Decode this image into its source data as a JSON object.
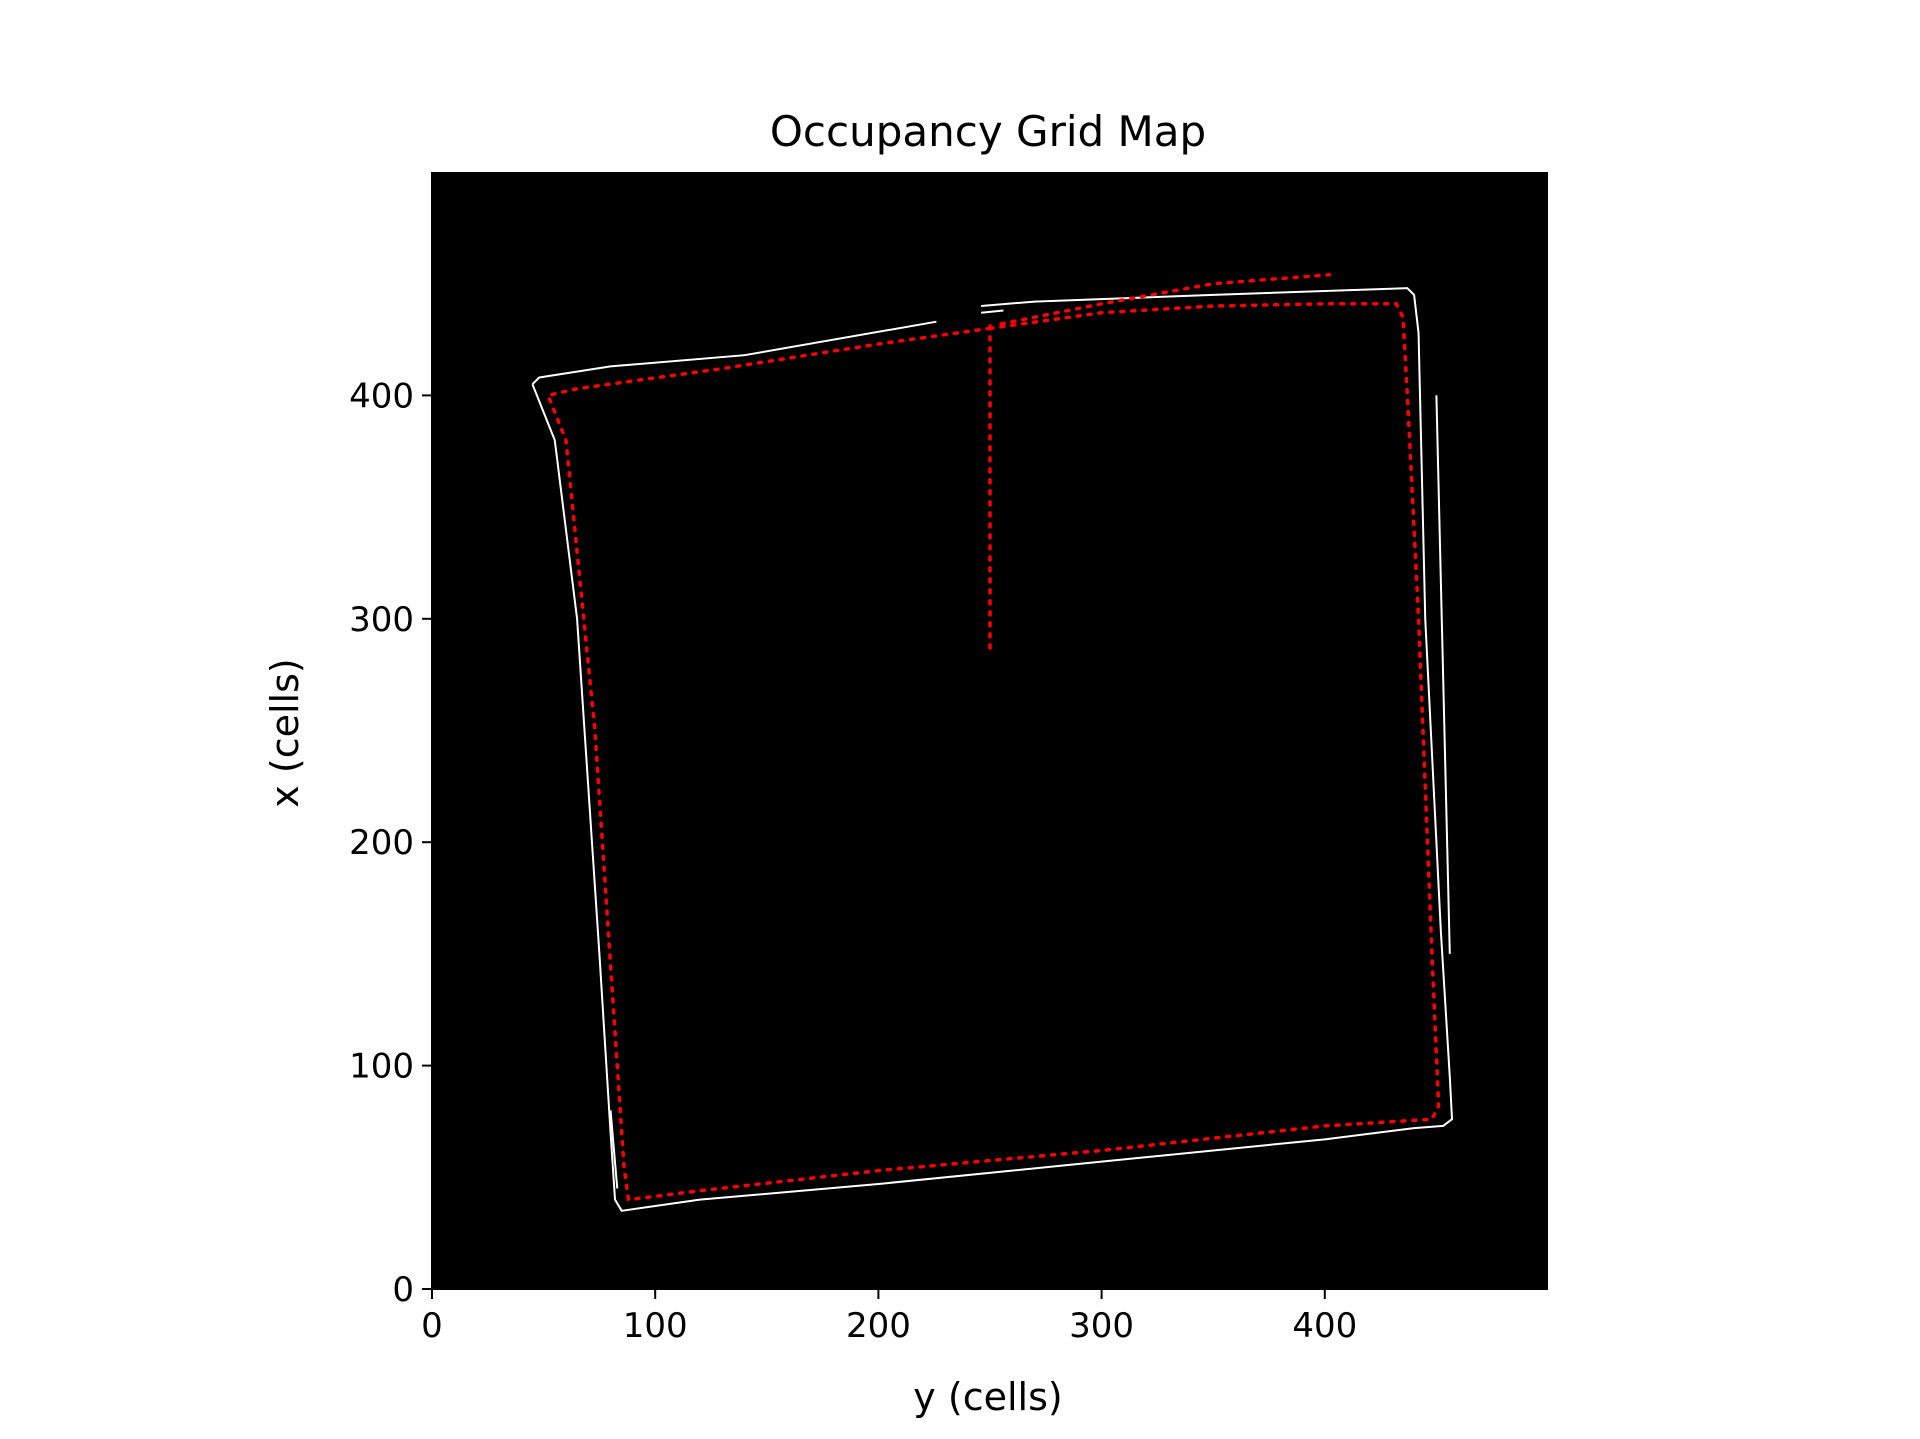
{
  "chart_data": {
    "type": "scatter",
    "title": "Occupancy Grid Map",
    "xlabel": "y (cells)",
    "ylabel": "x (cells)",
    "xlim": [
      0,
      500
    ],
    "ylim": [
      0,
      500
    ],
    "x_ticks": [
      0,
      100,
      200,
      300,
      400
    ],
    "y_ticks": [
      0,
      100,
      200,
      300,
      400
    ],
    "x_tick_labels": [
      "0",
      "100",
      "200",
      "300",
      "400"
    ],
    "y_tick_labels": [
      "0",
      "100",
      "200",
      "300",
      "400"
    ],
    "grid": false,
    "background_color": "#000000",
    "occupied_color": "#ffffff",
    "path_color": "#ff0000",
    "occupied_walls": [
      {
        "points": [
          [
            45,
            405
          ],
          [
            48,
            408
          ],
          [
            80,
            413
          ],
          [
            140,
            418
          ],
          [
            226,
            433
          ]
        ]
      },
      {
        "points": [
          [
            246,
            440
          ],
          [
            270,
            442
          ],
          [
            350,
            445
          ],
          [
            437,
            448
          ],
          [
            440,
            445
          ],
          [
            442,
            428
          ],
          [
            445,
            300
          ],
          [
            452,
            160
          ],
          [
            456,
            95
          ],
          [
            457,
            76
          ],
          [
            453,
            73
          ],
          [
            440,
            72
          ],
          [
            400,
            67
          ],
          [
            300,
            57
          ],
          [
            200,
            47
          ],
          [
            120,
            40
          ],
          [
            85,
            35
          ],
          [
            82,
            40
          ],
          [
            80,
            70
          ],
          [
            75,
            150
          ],
          [
            65,
            300
          ],
          [
            55,
            380
          ],
          [
            45,
            405
          ]
        ]
      },
      {
        "points": [
          [
            246,
            437
          ],
          [
            256,
            438
          ]
        ]
      },
      {
        "points": [
          [
            450,
            400
          ],
          [
            456,
            150
          ]
        ]
      },
      {
        "points": [
          [
            80,
            80
          ],
          [
            83,
            45
          ]
        ]
      }
    ],
    "robot_path": [
      {
        "points": [
          [
            250,
            287
          ],
          [
            250,
            432
          ]
        ]
      },
      {
        "points": [
          [
            250,
            430
          ],
          [
            300,
            437
          ],
          [
            350,
            440
          ],
          [
            400,
            441
          ],
          [
            432,
            441
          ],
          [
            435,
            435
          ],
          [
            437,
            400
          ],
          [
            442,
            300
          ],
          [
            448,
            150
          ],
          [
            451,
            82
          ],
          [
            448,
            76
          ],
          [
            400,
            73
          ],
          [
            300,
            62
          ],
          [
            200,
            53
          ],
          [
            120,
            44
          ],
          [
            88,
            40
          ],
          [
            86,
            55
          ],
          [
            83,
            100
          ],
          [
            73,
            250
          ],
          [
            60,
            380
          ],
          [
            52,
            400
          ],
          [
            65,
            403
          ],
          [
            130,
            412
          ],
          [
            200,
            423
          ],
          [
            250,
            430
          ]
        ]
      },
      {
        "points": [
          [
            255,
            432
          ],
          [
            300,
            441
          ],
          [
            350,
            450
          ],
          [
            402,
            454
          ]
        ]
      }
    ]
  }
}
